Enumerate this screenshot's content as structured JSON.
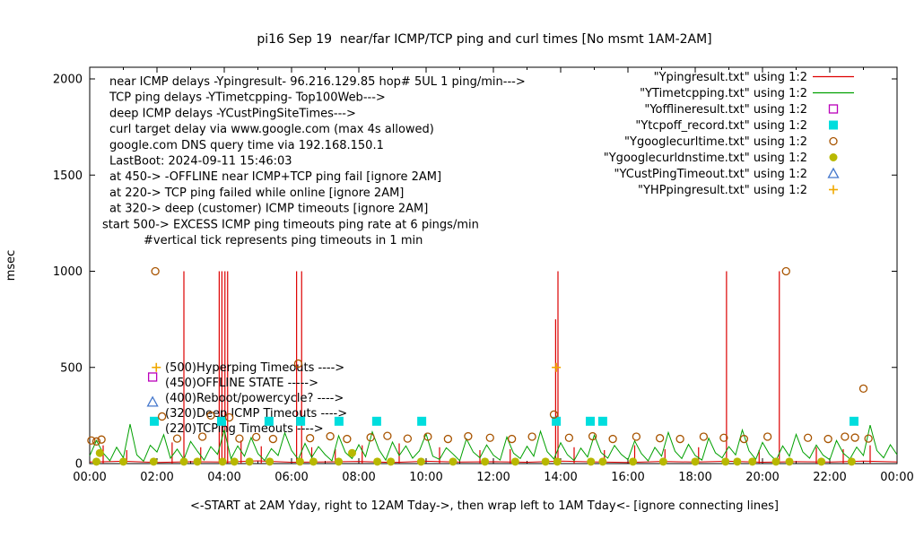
{
  "title": "pi16 Sep 19  near/far ICMP/TCP ping and curl times [No msmt 1AM-2AM]",
  "axes": {
    "ylabel": "msec",
    "xlabel": "<-START at 2AM Yday, right to 12AM Tday->, then wrap left to 1AM Tday<- [ignore connecting lines]"
  },
  "chart_data": {
    "type": "line",
    "title": "pi16 Sep 19  near/far ICMP/TCP ping and curl times [No msmt 1AM-2AM]",
    "xlabel": "<-START at 2AM Yday, right to 12AM Tday->, then wrap left to 1AM Tday<- [ignore connecting lines]",
    "ylabel": "msec",
    "ylim": [
      0,
      2000
    ],
    "x_hours_range": [
      0,
      24
    ],
    "y_tick_values": [
      0,
      500,
      1000,
      1500,
      2000
    ],
    "x_tick_labels": [
      "00:00",
      "02:00",
      "04:00",
      "06:00",
      "08:00",
      "10:00",
      "12:00",
      "14:00",
      "16:00",
      "18:00",
      "20:00",
      "22:00",
      "00:00"
    ],
    "grid": false,
    "legend_position": "top-right-inside",
    "annotations": [
      {
        "text": "near ICMP delays -Ypingresult- 96.216.129.85 hop# 5UL 1 ping/min--->",
        "indent": 0
      },
      {
        "text": "TCP ping delays -YTimetcpping- Top100Web--->",
        "indent": 0
      },
      {
        "text": "deep ICMP delays -YCustPingSiteTimes--->",
        "indent": 0
      },
      {
        "text": "curl target delay via www.google.com (max 4s allowed)",
        "indent": 0
      },
      {
        "text": "google.com DNS query time via 192.168.150.1",
        "indent": 0
      },
      {
        "text": "LastBoot: 2024-09-11 15:46:03",
        "indent": 0
      },
      {
        "text": "at 450-> -OFFLINE near ICMP+TCP ping fail [ignore 2AM]",
        "indent": 0
      },
      {
        "text": "at 220-> TCP ping failed while online [ignore 2AM]",
        "indent": 0
      },
      {
        "text": "at 320-> deep (customer) ICMP timeouts [ignore 2AM]",
        "indent": 0
      },
      {
        "text": "start 500-> EXCESS ICMP ping timeouts ping rate at 6 pings/min",
        "indent": -8
      },
      {
        "text": "#vertical tick represents ping timeouts in 1 min",
        "indent": 38
      }
    ],
    "level_labels": [
      "(500)Hyperping Timeouts ---->",
      "(450)OFFLINE STATE ----->",
      "(400)Reboot/powercycle? ---->",
      "(320)Deep ICMP Timeouts ---->",
      "(220)TCPing Timeouts ---->"
    ],
    "series": [
      {
        "id": "Ypingresult",
        "name": "\"Ypingresult.txt\" using 1:2",
        "type": "impulses",
        "color": "#dd0000",
        "baseline": {
          "x0": 0,
          "dx": 1,
          "values": [
            8,
            12,
            6,
            10,
            8,
            14,
            7,
            9,
            11,
            6,
            12,
            8,
            10,
            7,
            13,
            9,
            6,
            11,
            8,
            12,
            7,
            10,
            8,
            13,
            9
          ]
        },
        "spikes": [
          [
            0.4,
            95
          ],
          [
            1.1,
            70
          ],
          [
            2.45,
            110
          ],
          [
            2.8,
            1000
          ],
          [
            3.3,
            85
          ],
          [
            3.85,
            1000
          ],
          [
            3.93,
            1000
          ],
          [
            4.02,
            1000
          ],
          [
            4.1,
            1000
          ],
          [
            4.5,
            120
          ],
          [
            5.1,
            90
          ],
          [
            6.15,
            1000
          ],
          [
            6.3,
            1000
          ],
          [
            6.6,
            85
          ],
          [
            7.3,
            75
          ],
          [
            8.1,
            95
          ],
          [
            9.2,
            105
          ],
          [
            10.4,
            85
          ],
          [
            11.6,
            70
          ],
          [
            12.5,
            75
          ],
          [
            13.85,
            750
          ],
          [
            13.92,
            1000
          ],
          [
            14.4,
            85
          ],
          [
            15.3,
            70
          ],
          [
            16.2,
            95
          ],
          [
            17.1,
            75
          ],
          [
            18.1,
            85
          ],
          [
            18.93,
            1000
          ],
          [
            19.9,
            70
          ],
          [
            20.5,
            1000
          ],
          [
            21.6,
            85
          ],
          [
            22.4,
            75
          ],
          [
            23.2,
            95
          ]
        ]
      },
      {
        "id": "YTimetcpping",
        "name": "\"YTimetcpping.txt\" using 1:2",
        "type": "line",
        "color": "#00a000",
        "x0": 0,
        "dx": 0.2,
        "values": [
          40,
          120,
          55,
          15,
          85,
          30,
          205,
          45,
          12,
          95,
          60,
          150,
          28,
          75,
          22,
          115,
          65,
          18,
          88,
          48,
          175,
          25,
          92,
          38,
          135,
          52,
          16,
          78,
          42,
          160,
          68,
          22,
          105,
          32,
          88,
          46,
          14,
          145,
          58,
          26,
          98,
          36,
          165,
          72,
          18,
          112,
          42,
          92,
          28,
          66,
          155,
          38,
          22,
          82,
          50,
          15,
          128,
          60,
          30,
          97,
          44,
          18,
          138,
          54,
          26,
          90,
          38,
          168,
          62,
          24,
          108,
          46,
          16,
          80,
          34,
          148,
          58,
          28,
          94,
          48,
          20,
          118,
          52,
          14,
          84,
          38,
          162,
          64,
          26,
          100,
          42,
          18,
          132,
          56,
          30,
          88,
          45,
          175,
          66,
          22,
          110,
          50,
          16,
          92,
          38,
          152,
          60,
          28,
          96,
          44,
          20,
          120,
          54,
          24,
          86,
          42,
          200,
          68,
          30,
          98,
          46
        ]
      },
      {
        "id": "Yofflineresult",
        "name": "\"Yofflineresult.txt\" using 1:2",
        "type": "open-square",
        "color": "#bb00bb",
        "points": [
          [
            1.87,
            450
          ]
        ]
      },
      {
        "id": "Ytcpoff_record",
        "name": "\"Ytcpoff_record.txt\" using 1:2",
        "type": "filled-square",
        "color": "#00dddd",
        "points": [
          [
            1.92,
            220
          ],
          [
            3.92,
            220
          ],
          [
            5.33,
            220
          ],
          [
            6.27,
            220
          ],
          [
            7.41,
            220
          ],
          [
            8.53,
            220
          ],
          [
            9.87,
            220
          ],
          [
            13.87,
            220
          ],
          [
            14.88,
            220
          ],
          [
            15.25,
            220
          ],
          [
            22.72,
            220
          ]
        ]
      },
      {
        "id": "Ygooglecurltime",
        "name": "\"Ygooglecurltime.txt\" using 1:2",
        "type": "open-circle",
        "color": "#a85400",
        "points": [
          [
            0.05,
            120
          ],
          [
            0.2,
            115
          ],
          [
            0.35,
            125
          ],
          [
            1.95,
            1000
          ],
          [
            2.15,
            245
          ],
          [
            2.6,
            130
          ],
          [
            3.35,
            140
          ],
          [
            3.6,
            250
          ],
          [
            4.15,
            240
          ],
          [
            4.45,
            130
          ],
          [
            4.95,
            138
          ],
          [
            5.45,
            128
          ],
          [
            6.2,
            520
          ],
          [
            6.55,
            132
          ],
          [
            7.15,
            142
          ],
          [
            7.65,
            128
          ],
          [
            8.35,
            136
          ],
          [
            8.85,
            144
          ],
          [
            9.45,
            130
          ],
          [
            10.05,
            140
          ],
          [
            10.65,
            128
          ],
          [
            11.25,
            142
          ],
          [
            11.9,
            134
          ],
          [
            12.55,
            128
          ],
          [
            13.15,
            140
          ],
          [
            13.8,
            255
          ],
          [
            14.25,
            134
          ],
          [
            14.95,
            142
          ],
          [
            15.55,
            128
          ],
          [
            16.25,
            140
          ],
          [
            16.95,
            132
          ],
          [
            17.55,
            128
          ],
          [
            18.25,
            140
          ],
          [
            18.85,
            134
          ],
          [
            19.45,
            128
          ],
          [
            20.15,
            140
          ],
          [
            20.7,
            1000
          ],
          [
            21.35,
            134
          ],
          [
            21.95,
            128
          ],
          [
            22.45,
            140
          ],
          [
            22.75,
            135
          ],
          [
            23.0,
            390
          ],
          [
            23.15,
            130
          ]
        ]
      },
      {
        "id": "Ygooglecurldnstime",
        "name": "\"Ygooglecurldnstime.txt\" using 1:2",
        "type": "filled-circle",
        "color": "#b8b800",
        "points": [
          [
            0.2,
            10
          ],
          [
            0.3,
            55
          ],
          [
            1.0,
            10
          ],
          [
            1.9,
            10
          ],
          [
            2.8,
            10
          ],
          [
            3.2,
            10
          ],
          [
            3.95,
            10
          ],
          [
            4.3,
            10
          ],
          [
            4.75,
            10
          ],
          [
            5.35,
            10
          ],
          [
            6.25,
            10
          ],
          [
            6.65,
            10
          ],
          [
            7.4,
            10
          ],
          [
            7.8,
            55
          ],
          [
            8.55,
            10
          ],
          [
            8.95,
            10
          ],
          [
            9.85,
            10
          ],
          [
            10.8,
            10
          ],
          [
            11.75,
            10
          ],
          [
            12.65,
            10
          ],
          [
            13.55,
            10
          ],
          [
            13.9,
            10
          ],
          [
            14.9,
            10
          ],
          [
            15.25,
            10
          ],
          [
            16.15,
            10
          ],
          [
            17.05,
            10
          ],
          [
            18.0,
            10
          ],
          [
            18.9,
            10
          ],
          [
            19.25,
            10
          ],
          [
            19.7,
            10
          ],
          [
            20.4,
            10
          ],
          [
            20.8,
            10
          ],
          [
            21.75,
            10
          ],
          [
            22.65,
            10
          ]
        ]
      },
      {
        "id": "YCustPingTimeout",
        "name": "\"YCustPingTimeout.txt\" using 1:2",
        "type": "open-triangle",
        "color": "#4477cc",
        "points": [
          [
            1.87,
            320
          ]
        ]
      },
      {
        "id": "YHPpingresult",
        "name": "\"YHPpingresult.txt\" using 1:2",
        "type": "plus",
        "color": "#f0a800",
        "points": [
          [
            1.98,
            500
          ],
          [
            13.87,
            500
          ]
        ]
      }
    ]
  }
}
